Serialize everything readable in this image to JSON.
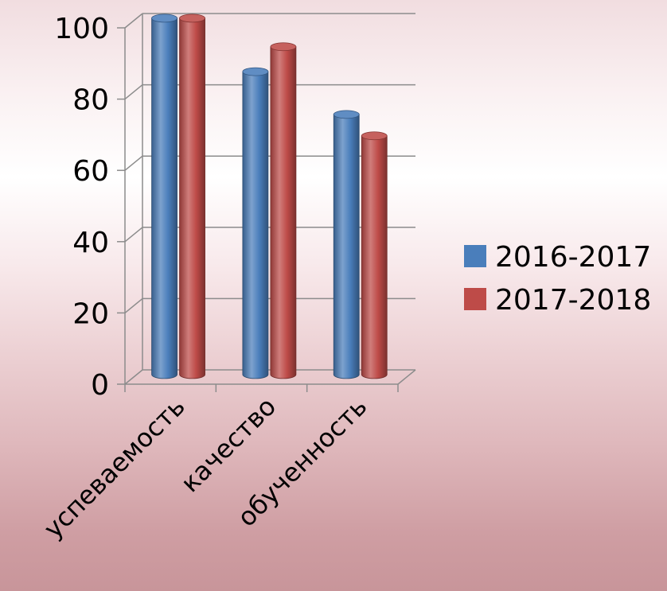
{
  "chart_data": {
    "type": "bar",
    "categories": [
      "успеваемость",
      "качество",
      "обученность"
    ],
    "series": [
      {
        "name": "2016-2017",
        "values": [
          100,
          85,
          73
        ],
        "color": "#4a7ebb"
      },
      {
        "name": "2017-2018",
        "values": [
          100,
          92,
          67
        ],
        "color": "#be4b48"
      }
    ],
    "title": "",
    "xlabel": "",
    "ylabel": "",
    "ylim": [
      0,
      100
    ],
    "yticks": [
      0,
      20,
      40,
      60,
      80,
      100
    ],
    "grid": true,
    "legend": "right",
    "style": "3d-cylinder"
  }
}
